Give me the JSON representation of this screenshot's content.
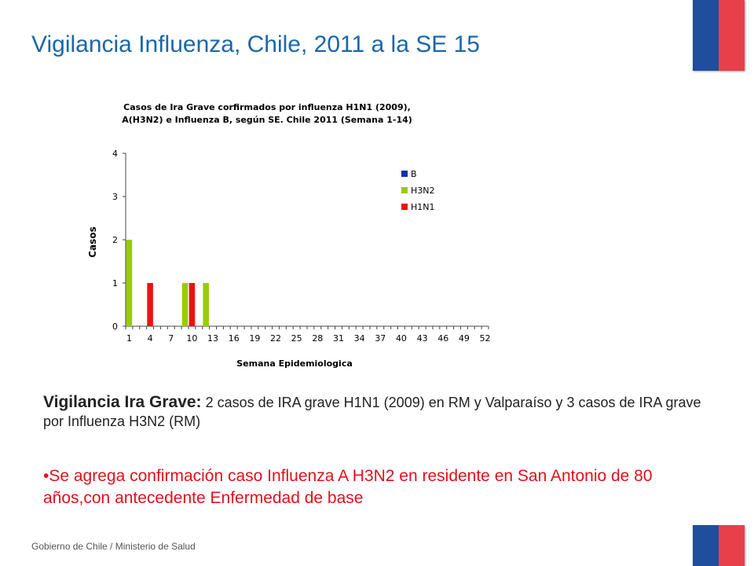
{
  "slide": {
    "title": "Vigilancia Influenza, Chile, 2011 a la SE 15",
    "body_lead": "Vigilancia Ira Grave:",
    "body_text": "  2 casos de IRA grave H1N1 (2009) en RM y Valparaíso y 3 casos de IRA grave por Influenza H3N2  (RM)",
    "bullet_text": "•Se agrega confirmación caso Influenza A H3N2 en residente en  San Antonio de 80 años,con antecedente Enfermedad de base",
    "footer": "Gobierno de Chile / Ministerio de Salud"
  },
  "colors": {
    "title": "#1b67a9",
    "flag_blue": "#1f4e9c",
    "flag_red": "#e8404a",
    "bullet": "#e0101c"
  },
  "chart_data": {
    "type": "bar",
    "title_line1": "Casos de Ira Grave corfirmados por influenza H1N1 (2009),",
    "title_line2": "A(H3N2) e Influenza B, según SE. Chile 2011 (Semana 1-14)",
    "xlabel": "Semana Epidemiologica",
    "ylabel": "Casos",
    "ylim": [
      0,
      4
    ],
    "yticks": [
      0,
      1,
      2,
      3,
      4
    ],
    "x_categories": [
      1,
      2,
      3,
      4,
      5,
      6,
      7,
      8,
      9,
      10,
      11,
      12,
      13,
      14,
      15,
      16,
      17,
      18,
      19,
      20,
      21,
      22,
      23,
      24,
      25,
      26,
      27,
      28,
      29,
      30,
      31,
      32,
      33,
      34,
      35,
      36,
      37,
      38,
      39,
      40,
      41,
      42,
      43,
      44,
      45,
      46,
      47,
      48,
      49,
      50,
      51,
      52
    ],
    "xtick_labels": [
      "1",
      "4",
      "7",
      "10",
      "13",
      "16",
      "19",
      "22",
      "25",
      "28",
      "31",
      "34",
      "37",
      "40",
      "43",
      "46",
      "49",
      "52"
    ],
    "legend_position": "top-right",
    "series": [
      {
        "name": "B",
        "color": "#1030b0",
        "values": {}
      },
      {
        "name": "H3N2",
        "color": "#99cc00",
        "values": {
          "1": 2,
          "9": 1,
          "12": 1
        }
      },
      {
        "name": "H1N1",
        "color": "#ee1111",
        "values": {
          "4": 1,
          "10": 1
        }
      }
    ]
  }
}
